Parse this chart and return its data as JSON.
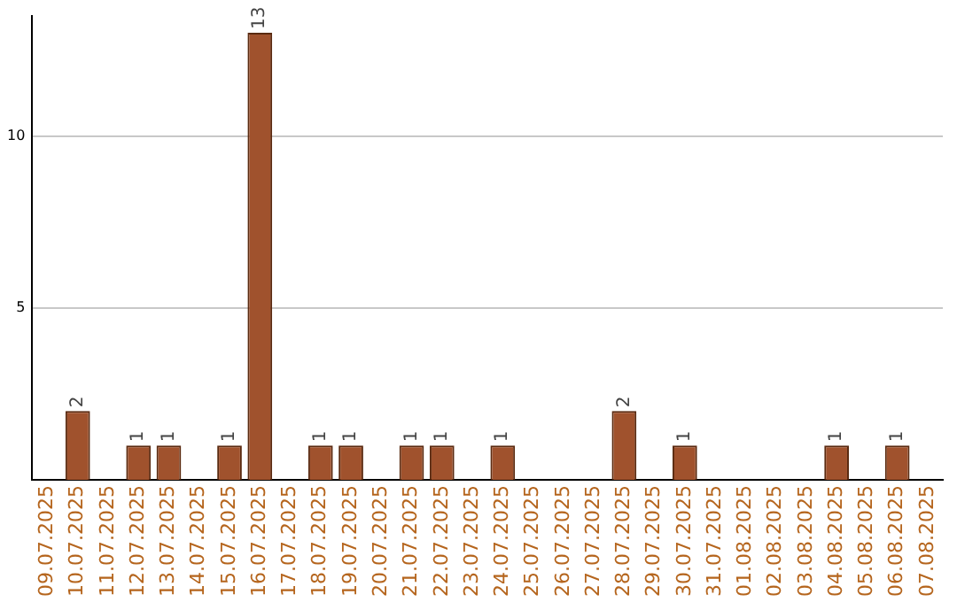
{
  "chart_data": {
    "type": "bar",
    "categories": [
      "09.07.2025",
      "10.07.2025",
      "11.07.2025",
      "12.07.2025",
      "13.07.2025",
      "14.07.2025",
      "15.07.2025",
      "16.07.2025",
      "17.07.2025",
      "18.07.2025",
      "19.07.2025",
      "20.07.2025",
      "21.07.2025",
      "22.07.2025",
      "23.07.2025",
      "24.07.2025",
      "25.07.2025",
      "26.07.2025",
      "27.07.2025",
      "28.07.2025",
      "29.07.2025",
      "30.07.2025",
      "31.07.2025",
      "01.08.2025",
      "02.08.2025",
      "03.08.2025",
      "04.08.2025",
      "05.08.2025",
      "06.08.2025",
      "07.08.2025"
    ],
    "values": [
      0,
      2,
      0,
      1,
      1,
      0,
      1,
      13,
      0,
      1,
      1,
      0,
      1,
      1,
      0,
      1,
      0,
      0,
      0,
      2,
      0,
      1,
      0,
      0,
      0,
      0,
      1,
      0,
      1,
      0
    ],
    "value_labels": [
      null,
      "2",
      null,
      "1",
      "1",
      null,
      "1",
      "13",
      null,
      "1",
      "1",
      null,
      "1",
      "1",
      null,
      "1",
      null,
      null,
      null,
      "2",
      null,
      "1",
      null,
      null,
      null,
      null,
      "1",
      null,
      "1",
      null
    ],
    "color": "#a0522d",
    "ylim": [
      0,
      13.5
    ],
    "yticks": [
      5,
      10
    ],
    "grid": "y",
    "legend": false
  }
}
